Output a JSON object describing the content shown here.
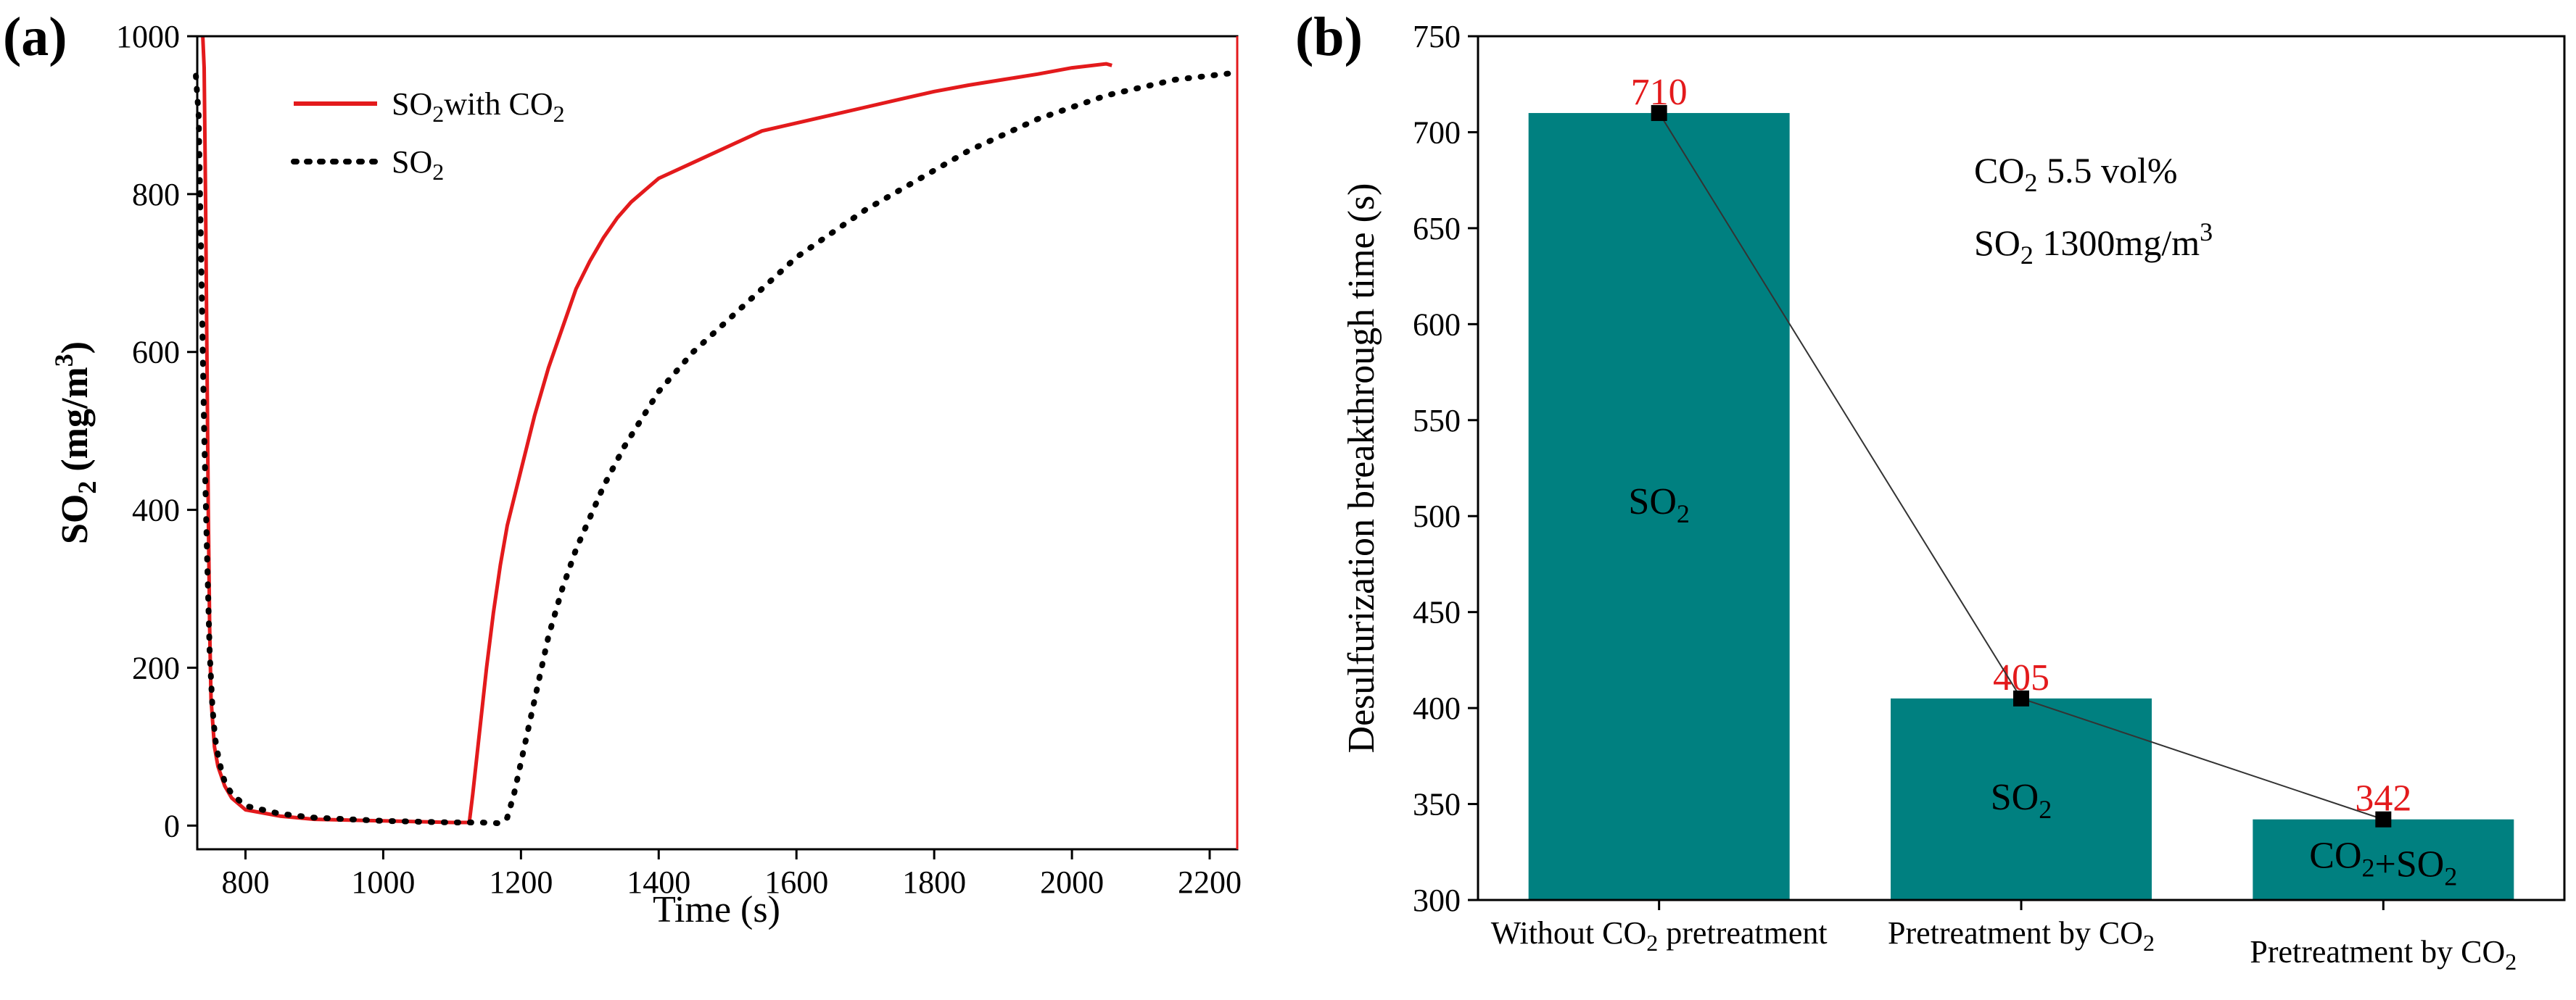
{
  "colors": {
    "red": "#E31A1C",
    "teal": "#008080",
    "black": "#000000"
  },
  "chart_data": [
    {
      "type": "line",
      "panel": "(a)",
      "xlabel": "Time (s)",
      "ylabel": "SO2 (mg/m3)",
      "ylabel_parts": {
        "main": "SO",
        "sub": "2",
        "mid": " (mg/m",
        "sup": "3",
        "end": ")"
      },
      "xlim": [
        730,
        2240
      ],
      "ylim": [
        -30,
        1000
      ],
      "xticks": [
        "800",
        "1000",
        "1200",
        "1400",
        "1600",
        "1800",
        "2000",
        "2200"
      ],
      "xtick_values": [
        800,
        1000,
        1200,
        1400,
        1600,
        1800,
        2000,
        2200
      ],
      "yticks": [
        "0",
        "200",
        "400",
        "600",
        "800",
        "1000"
      ],
      "ytick_values": [
        0,
        200,
        400,
        600,
        800,
        1000
      ],
      "legend": [
        {
          "label": "SO2with CO2",
          "parts": {
            "a": "SO",
            "a_sub": "2",
            "b": "with CO",
            "b_sub": "2"
          },
          "style": "solid",
          "color": "#E31A1C"
        },
        {
          "label": "SO2",
          "parts": {
            "a": "SO",
            "a_sub": "2"
          },
          "style": "dotted",
          "color": "#000000"
        }
      ],
      "series": [
        {
          "name": "SO2 with CO2",
          "style": "solid",
          "x": [
            738,
            740,
            742,
            744,
            746,
            748,
            750,
            755,
            760,
            770,
            780,
            800,
            850,
            900,
            1000,
            1050,
            1100,
            1125,
            1130,
            1140,
            1150,
            1160,
            1170,
            1180,
            1200,
            1220,
            1240,
            1260,
            1280,
            1300,
            1320,
            1340,
            1360,
            1380,
            1400,
            1450,
            1500,
            1550,
            1600,
            1650,
            1700,
            1750,
            1800,
            1850,
            1900,
            1950,
            2000,
            2050,
            2058
          ],
          "y": [
            1000,
            960,
            800,
            600,
            400,
            250,
            160,
            100,
            75,
            50,
            35,
            20,
            12,
            8,
            6,
            5,
            4,
            4,
            40,
            120,
            200,
            270,
            330,
            380,
            450,
            520,
            580,
            630,
            680,
            715,
            745,
            770,
            790,
            805,
            820,
            840,
            860,
            880,
            890,
            900,
            910,
            920,
            930,
            938,
            945,
            952,
            960,
            965,
            963
          ]
        },
        {
          "name": "SO2",
          "style": "dotted",
          "x": [
            728,
            732,
            736,
            740,
            744,
            748,
            752,
            756,
            760,
            765,
            770,
            780,
            800,
            850,
            900,
            950,
            1000,
            1050,
            1100,
            1140,
            1170,
            1180,
            1190,
            1200,
            1210,
            1220,
            1230,
            1240,
            1250,
            1260,
            1280,
            1300,
            1320,
            1350,
            1400,
            1450,
            1500,
            1550,
            1600,
            1650,
            1700,
            1750,
            1800,
            1850,
            1900,
            1950,
            2000,
            2050,
            2100,
            2150,
            2200,
            2230
          ],
          "y": [
            950,
            900,
            700,
            500,
            350,
            220,
            150,
            110,
            90,
            70,
            55,
            40,
            25,
            15,
            10,
            8,
            6,
            5,
            4,
            4,
            3,
            10,
            40,
            80,
            120,
            160,
            200,
            240,
            270,
            300,
            350,
            390,
            430,
            480,
            550,
            600,
            640,
            680,
            720,
            750,
            780,
            805,
            830,
            855,
            875,
            895,
            910,
            925,
            935,
            945,
            950,
            953
          ]
        }
      ]
    },
    {
      "type": "bar",
      "panel": "(b)",
      "ylabel": "Desulfurization breakthrough time (s)",
      "ylim": [
        300,
        750
      ],
      "yticks": [
        "300",
        "350",
        "400",
        "450",
        "500",
        "550",
        "600",
        "650",
        "700",
        "750"
      ],
      "ytick_values": [
        300,
        350,
        400,
        450,
        500,
        550,
        600,
        650,
        700,
        750
      ],
      "categories": [
        "Without CO2 pretreatment",
        "Pretreatment by CO2",
        "Pretreatment by CO2"
      ],
      "category_parts": [
        {
          "a": "Without CO",
          "sub": "2",
          "b": " pretreatment"
        },
        {
          "a": "Pretreatment by CO",
          "sub": "2",
          "b": ""
        },
        {
          "a": "Pretreatment by CO",
          "sub": "2",
          "b": ""
        }
      ],
      "values": [
        710,
        405,
        342
      ],
      "value_labels": [
        "710",
        "405",
        "342"
      ],
      "bar_labels": [
        "SO2",
        "SO2",
        "CO2+SO2"
      ],
      "bar_label_parts": [
        [
          {
            "t": "SO",
            "s": "2"
          }
        ],
        [
          {
            "t": "SO",
            "s": "2"
          }
        ],
        [
          {
            "t": "CO",
            "s": "2"
          },
          {
            "t": "+SO",
            "s": "2"
          }
        ]
      ],
      "line_connecting_points": true,
      "annotation": {
        "line1": {
          "a": "CO",
          "sub": "2",
          "b": " 5.5 vol%"
        },
        "line2": {
          "a": "SO",
          "sub": "2",
          "b": " 1300mg/m",
          "sup": "3"
        }
      }
    }
  ]
}
